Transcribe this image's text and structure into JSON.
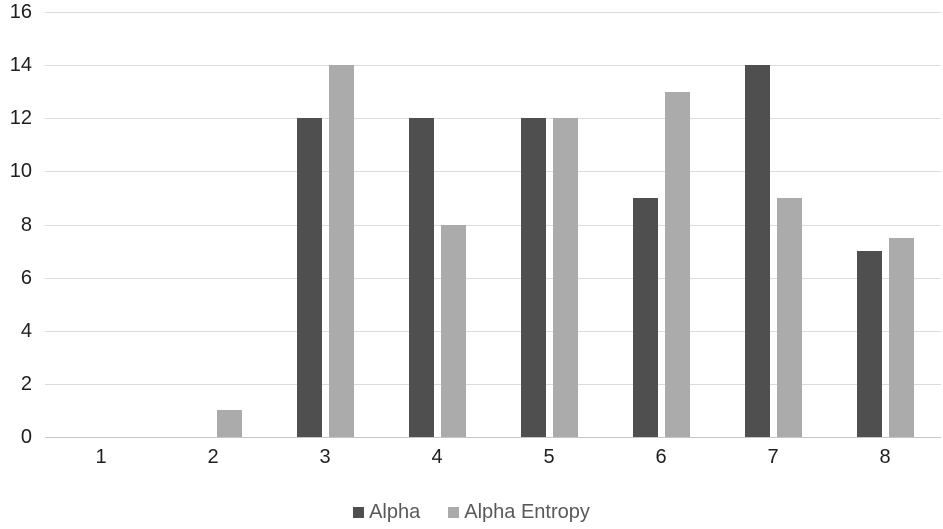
{
  "chart_data": {
    "type": "bar",
    "title": "",
    "xlabel": "",
    "ylabel": "",
    "categories": [
      "1",
      "2",
      "3",
      "4",
      "5",
      "6",
      "7",
      "8"
    ],
    "series": [
      {
        "name": "Alpha",
        "color": "#4f4f4f",
        "values": [
          0,
          0,
          12,
          12,
          12,
          9,
          14,
          7
        ]
      },
      {
        "name": "Alpha Entropy",
        "color": "#ababab",
        "values": [
          0,
          1,
          14,
          8,
          12,
          13,
          9,
          7.5
        ]
      }
    ],
    "ylim": [
      0,
      16
    ],
    "ytick_step": 2,
    "yticks": [
      0,
      2,
      4,
      6,
      8,
      10,
      12,
      14,
      16
    ],
    "ytick_labels": [
      "0",
      "2",
      "4",
      "6",
      "8",
      "10",
      "12",
      "14",
      "16"
    ],
    "grid": "horizontal",
    "legend_position": "bottom",
    "colors": {
      "gridline": "#dcdcdc",
      "axis_line": "#c6c6c6",
      "tick_label": "#1f1f1f",
      "legend_text": "#595959",
      "background": "#ffffff"
    }
  }
}
